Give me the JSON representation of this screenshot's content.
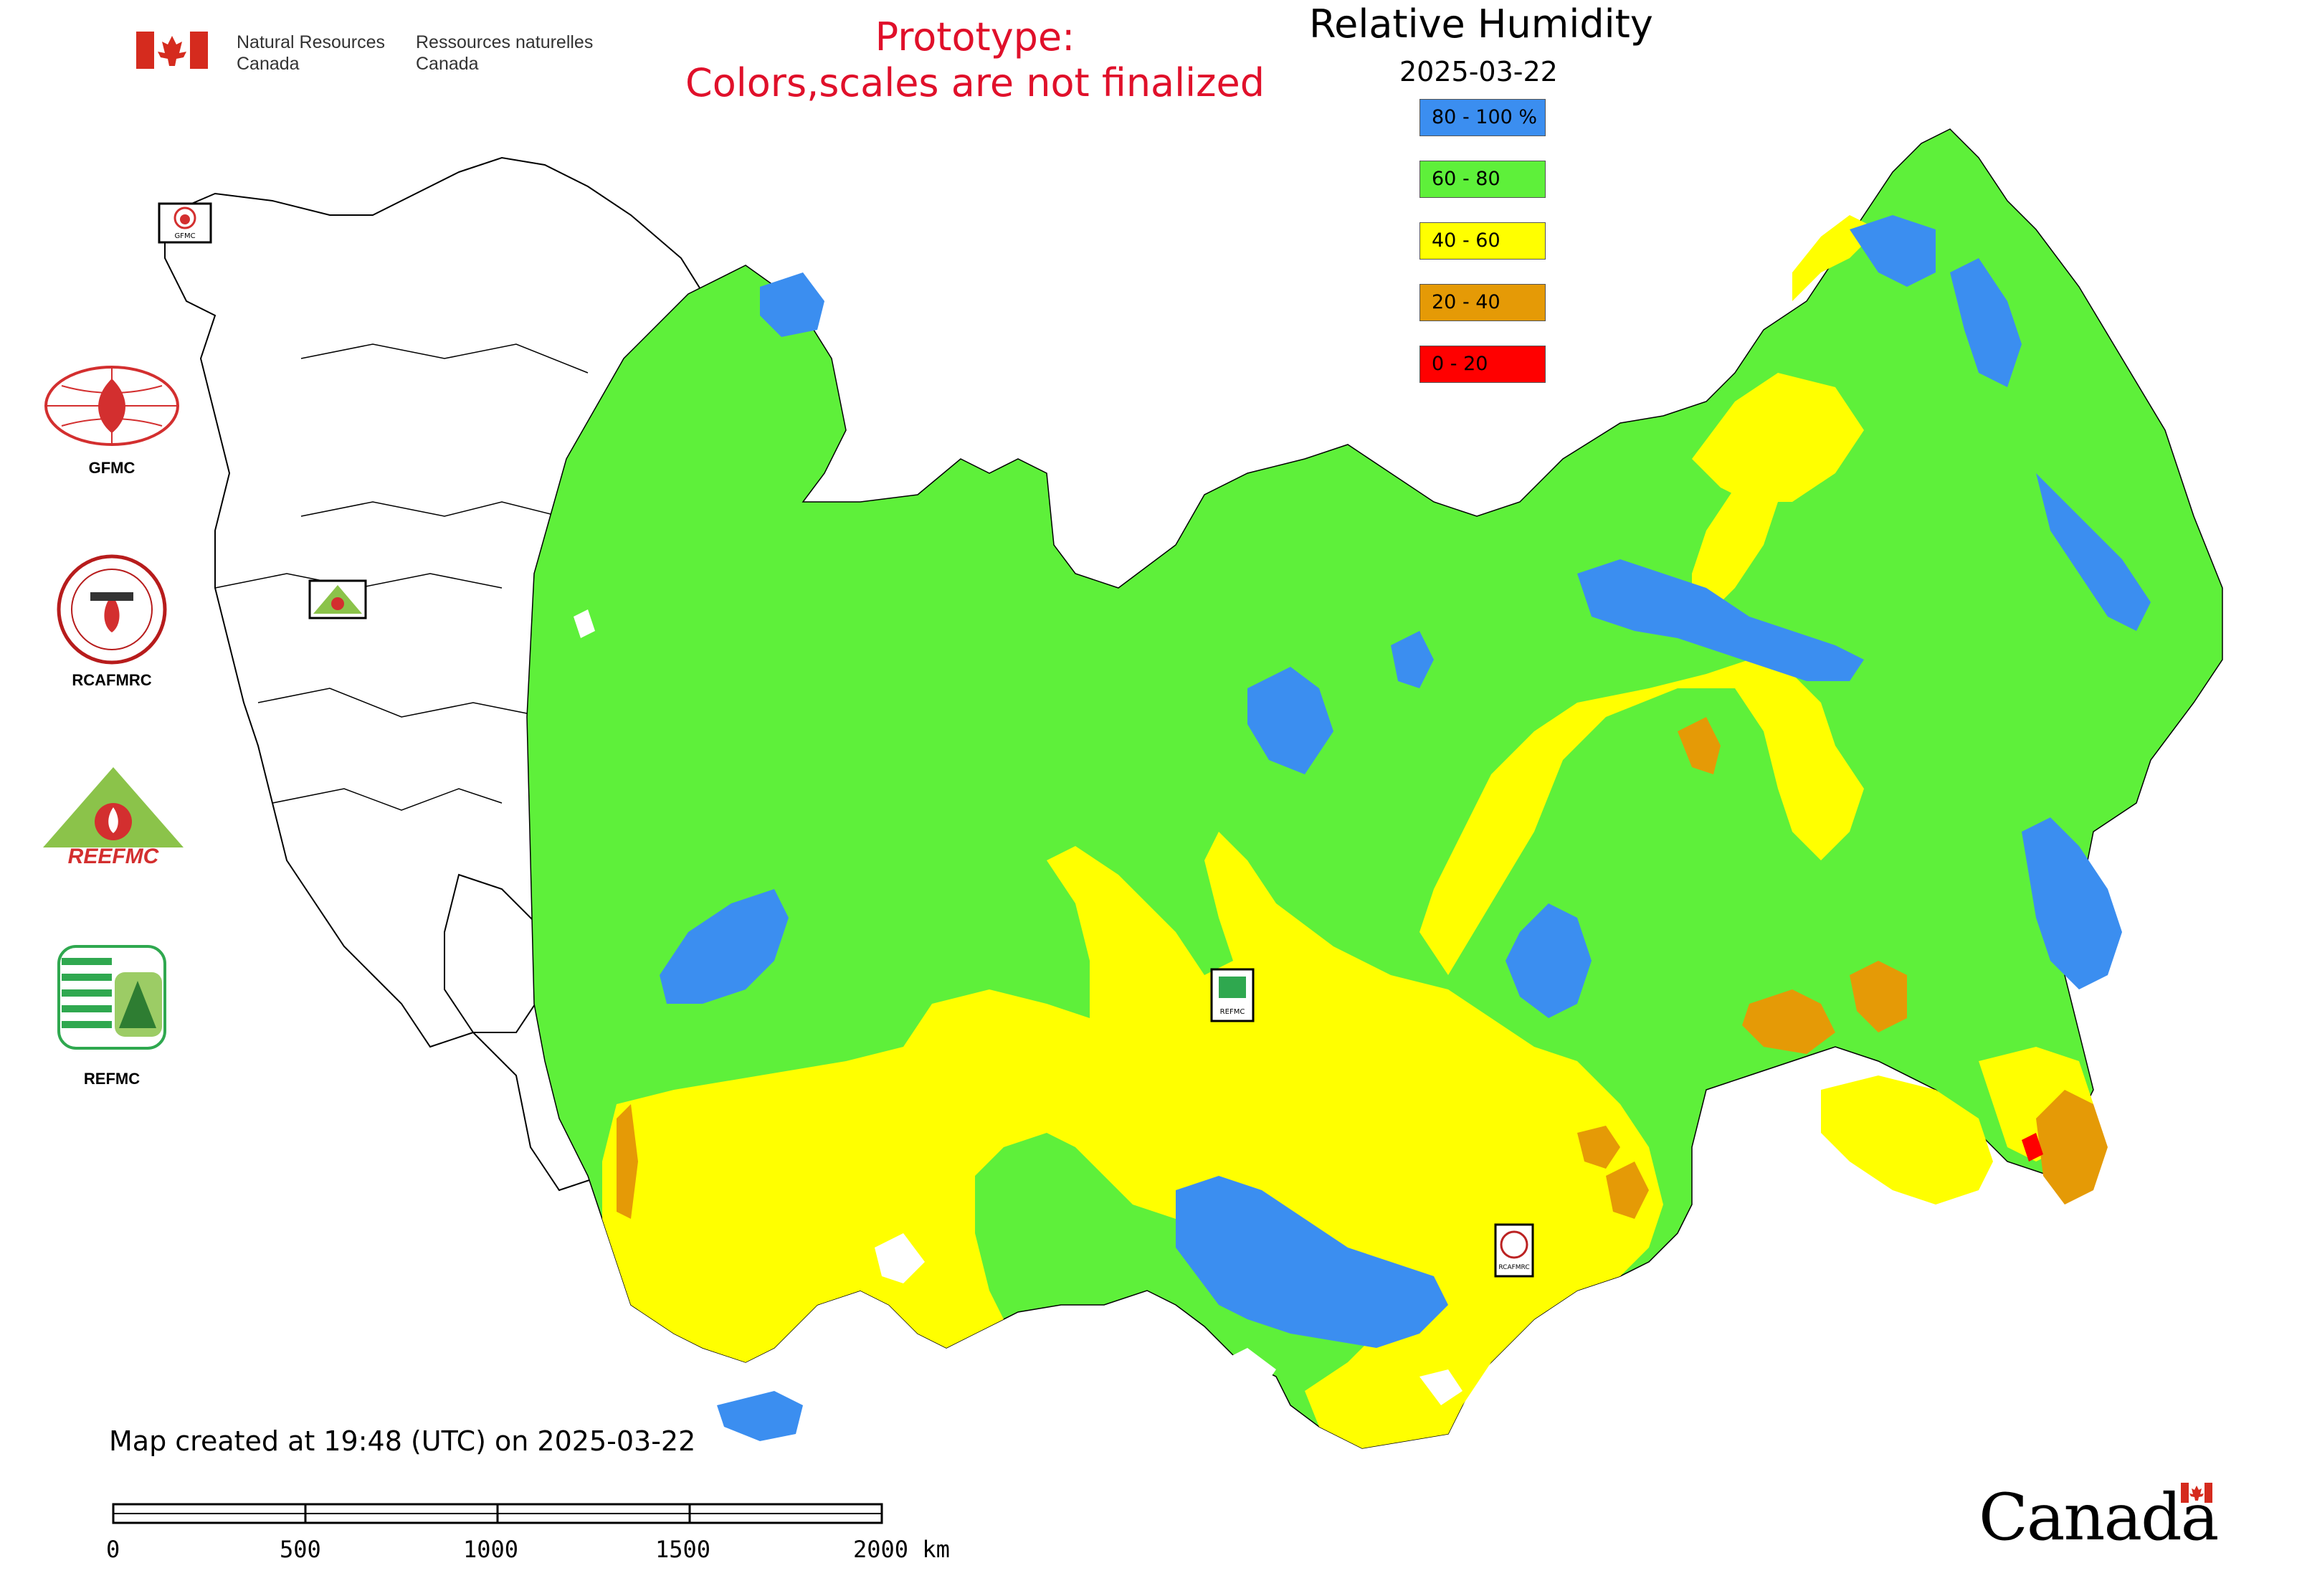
{
  "header": {
    "agency_en_line1": "Natural Resources",
    "agency_en_line2": "Canada",
    "agency_fr_line1": "Ressources naturelles",
    "agency_fr_line2": "Canada",
    "prototype_line1": "Prototype:",
    "prototype_line2": "Colors,scales are not finalized"
  },
  "title": "Relative Humidity",
  "date": "2025-03-22",
  "legend": [
    {
      "label": "80 - 100 %",
      "color": "#3b8ef0"
    },
    {
      "label": "60 - 80",
      "color": "#5ef03a"
    },
    {
      "label": "40 - 60",
      "color": "#ffff00"
    },
    {
      "label": "20 - 40",
      "color": "#e59a06"
    },
    {
      "label": "0 - 20",
      "color": "#ff0000"
    }
  ],
  "logos": {
    "gfmc": "GFMC",
    "rcafmrc": "RCAFMRC",
    "reefmc_logo_text": "REEFMC",
    "refmc": "REFMC",
    "mini_gfmc": "GFMC",
    "mini_rcafmrc": "RCAFMRC",
    "mini_refmc": "REFMC"
  },
  "footer": {
    "created": "Map created at 19:48 (UTC) on 2025-03-22",
    "scale_ticks": [
      "0",
      "500",
      "1000",
      "1500",
      "2000 km"
    ],
    "wordmark": "Canada"
  },
  "colors": {
    "blue": "#3b8ef0",
    "green": "#5ef03a",
    "yellow": "#ffff00",
    "orange": "#e59a06",
    "red": "#ff0000",
    "flag_red": "#d52b1e",
    "prototype_red": "#e0102a"
  }
}
